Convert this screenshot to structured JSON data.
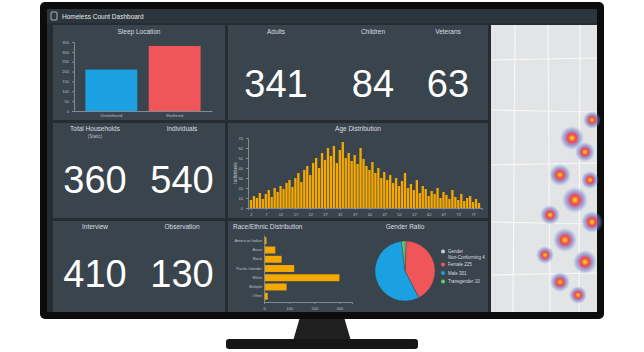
{
  "header": {
    "title": "Homeless Count Dashboard"
  },
  "indicators": [
    {
      "label": "Adults",
      "value": 341
    },
    {
      "label": "Children",
      "value": 84
    },
    {
      "label": "Veterans",
      "value": 63
    },
    {
      "label": "Total Households",
      "note": "(Static)",
      "value": 360
    },
    {
      "label": "Individuals",
      "value": 540
    },
    {
      "label": "Interview",
      "value": 410
    },
    {
      "label": "Observation",
      "value": 130
    }
  ],
  "chart_data": [
    {
      "type": "bar",
      "title": "Sleep Location",
      "categories": [
        "Unsheltered",
        "Sheltered"
      ],
      "values": [
        210,
        330
      ],
      "colors": [
        "#1ba1e2",
        "#f0555a"
      ],
      "ylim": [
        0,
        350
      ],
      "yticks": [
        0,
        50,
        100,
        150,
        200,
        250,
        300,
        350
      ]
    },
    {
      "type": "bar",
      "title": "Age Distribution",
      "y_label": "Individuals",
      "x": [
        2,
        3,
        4,
        5,
        6,
        7,
        8,
        9,
        10,
        11,
        12,
        13,
        14,
        15,
        16,
        17,
        18,
        19,
        20,
        21,
        22,
        23,
        24,
        25,
        26,
        27,
        28,
        29,
        30,
        31,
        32,
        33,
        34,
        35,
        36,
        37,
        38,
        39,
        40,
        41,
        42,
        43,
        44,
        45,
        46,
        47,
        48,
        49,
        50,
        51,
        52,
        53,
        54,
        55,
        56,
        57,
        58,
        59,
        60,
        61,
        62,
        63,
        64,
        65,
        66,
        67,
        68,
        69,
        70,
        71,
        72,
        73,
        74,
        75,
        76,
        77,
        78,
        79
      ],
      "values": [
        8,
        12,
        10,
        15,
        9,
        14,
        18,
        11,
        20,
        16,
        22,
        19,
        25,
        28,
        21,
        30,
        35,
        26,
        38,
        42,
        33,
        45,
        50,
        40,
        55,
        48,
        60,
        52,
        62,
        45,
        58,
        66,
        50,
        55,
        47,
        53,
        44,
        60,
        49,
        42,
        38,
        46,
        35,
        40,
        30,
        36,
        28,
        33,
        25,
        30,
        22,
        27,
        35,
        20,
        24,
        18,
        28,
        15,
        22,
        19,
        12,
        17,
        14,
        20,
        10,
        16,
        13,
        9,
        18,
        11,
        8,
        14,
        7,
        10,
        12,
        6,
        9,
        5
      ],
      "color": "#f5a800",
      "xlim": [
        1,
        80
      ],
      "xticks": [
        2,
        7,
        12,
        17,
        22,
        27,
        32,
        37,
        42,
        47,
        52,
        57,
        62,
        67,
        72,
        77
      ],
      "ylim": [
        0,
        70
      ],
      "yticks": [
        0,
        10,
        20,
        30,
        40,
        50,
        60,
        70
      ]
    },
    {
      "type": "bar",
      "orientation": "horizontal",
      "title": "Race/Ethnic Distribution",
      "categories": [
        "American Indian",
        "Asian",
        "Black",
        "Pacific Islander",
        "White",
        "Multiple",
        "Other"
      ],
      "values": [
        10,
        45,
        70,
        120,
        300,
        90,
        15
      ],
      "color": "#f5a800",
      "xlim": [
        0,
        350
      ],
      "xticks": [
        0,
        100,
        200,
        300
      ]
    },
    {
      "type": "pie",
      "title": "Gender Ratio",
      "categories": [
        "Gender Non-Conforming",
        "Female",
        "Male",
        "Transgender"
      ],
      "values": [
        4,
        225,
        301,
        10
      ],
      "colors": [
        "#c8ccd0",
        "#f0555a",
        "#1ba1e2",
        "#5fd35f"
      ],
      "legend": "right"
    }
  ]
}
